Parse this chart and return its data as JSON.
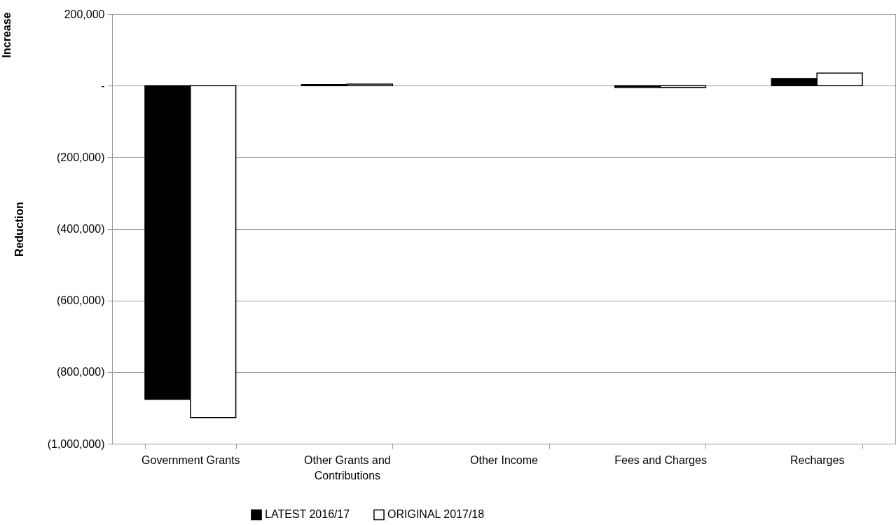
{
  "chart_data": {
    "type": "bar",
    "ylabel": "Reduction",
    "annotations": [
      "Increase"
    ],
    "categories": [
      "Government Grants",
      "Other Grants and Contributions",
      "Other Income",
      "Fees and Charges",
      "Recharges"
    ],
    "series": [
      {
        "name": "LATEST 2016/17",
        "color": "#000000",
        "values": [
          -876000,
          3000,
          0,
          -5000,
          20000
        ]
      },
      {
        "name": "ORIGINAL 2017/18",
        "color": "#ffffff",
        "values": [
          -927000,
          4000,
          0,
          -5000,
          35000
        ]
      }
    ],
    "ylim": [
      -1000000,
      200000
    ],
    "yticks": [
      {
        "value": 200000,
        "label": "200,000"
      },
      {
        "value": 0,
        "label": "-"
      },
      {
        "value": -200000,
        "label": "(200,000)"
      },
      {
        "value": -400000,
        "label": "(400,000)"
      },
      {
        "value": -600000,
        "label": "(600,000)"
      },
      {
        "value": -800000,
        "label": "(800,000)"
      },
      {
        "value": -1000000,
        "label": "(1,000,000)"
      }
    ],
    "grid": "y",
    "legend": "bottom"
  }
}
